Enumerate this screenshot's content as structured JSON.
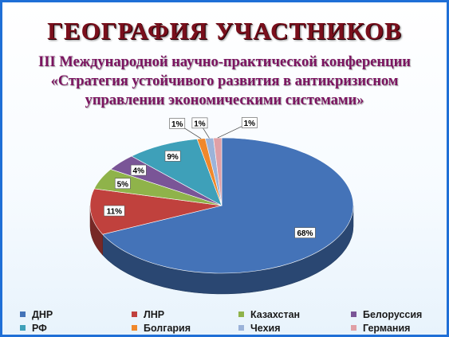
{
  "title": "ГЕОГРАФИЯ  УЧАСТНИКОВ",
  "subtitle_lines": [
    "III Международной научно-практической конференции",
    "«Стратегия  устойчивого развития в антикризисном",
    "управлении экономическими системами»"
  ],
  "chart_data": {
    "type": "pie",
    "title": "",
    "categories": [
      "ДНР",
      "ЛНР",
      "Казахстан",
      "Белоруссия",
      "РФ",
      "Болгария",
      "Чехия",
      "Германия"
    ],
    "values": [
      68,
      11,
      5,
      4,
      9,
      1,
      1,
      1
    ],
    "data_labels": [
      "68%",
      "11%",
      "5%",
      "4%",
      "9%",
      "1%",
      "1%",
      "1%"
    ],
    "colors": [
      "#4473b8",
      "#c0413d",
      "#8fb34a",
      "#7a5597",
      "#3ea0b9",
      "#f0882b",
      "#9bb3d9",
      "#e0a0a6"
    ],
    "legend": "bottom",
    "style": "3d"
  }
}
